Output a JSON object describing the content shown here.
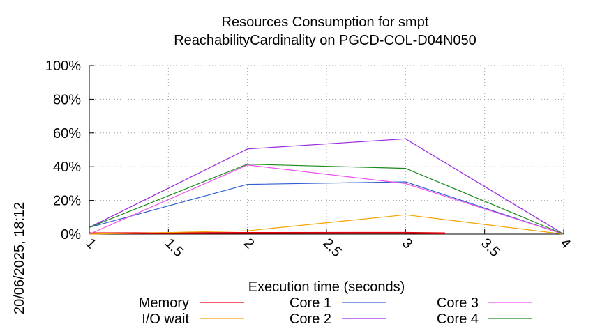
{
  "chart_data": {
    "type": "line",
    "title": [
      "Resources Consumption for smpt",
      "ReachabilityCardinality on PGCD-COL-D04N050"
    ],
    "xlabel": "Execution time (seconds)",
    "ylabel": "",
    "xlim": [
      1,
      4
    ],
    "ylim": [
      0,
      100
    ],
    "x_ticks": [
      "1",
      "1.5",
      "2",
      "2.5",
      "3",
      "3.5",
      "4"
    ],
    "y_ticks": [
      "0%",
      "20%",
      "40%",
      "60%",
      "80%",
      "100%"
    ],
    "grid": true,
    "legend_position": "bottom",
    "side_label": "20/06/2025, 18:12",
    "series": [
      {
        "name": "Memory",
        "color": "#e8000b",
        "x": [
          1,
          2,
          3,
          3.25
        ],
        "values": [
          0.5,
          0.7,
          0.8,
          0.5
        ]
      },
      {
        "name": "I/O wait",
        "color": "#f5a300",
        "x": [
          1,
          2,
          3,
          4
        ],
        "values": [
          0,
          2,
          11.5,
          0
        ]
      },
      {
        "name": "Core 1",
        "color": "#3060d0",
        "x": [
          1,
          2,
          3,
          4
        ],
        "values": [
          4,
          29.5,
          31,
          0
        ]
      },
      {
        "name": "Core 2",
        "color": "#9a28e0",
        "x": [
          1,
          2,
          3,
          4
        ],
        "values": [
          4,
          50.5,
          56.5,
          0
        ]
      },
      {
        "name": "Core 3",
        "color": "#f050f0",
        "x": [
          1,
          2,
          3,
          4
        ],
        "values": [
          0,
          41,
          30,
          0
        ]
      },
      {
        "name": "Core 4",
        "color": "#1a8a1a",
        "x": [
          1,
          2,
          3,
          4
        ],
        "values": [
          4,
          41.5,
          39,
          0
        ]
      }
    ]
  }
}
